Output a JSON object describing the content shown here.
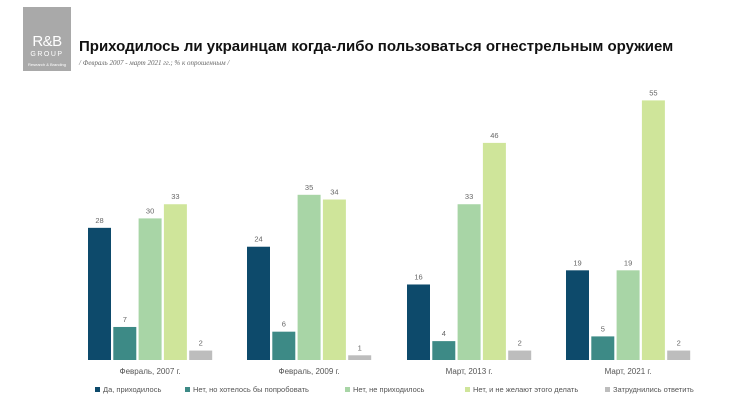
{
  "logo": {
    "line1": "R&B",
    "line2": "GROUP",
    "line3": "Research & Branding"
  },
  "header": {
    "title": "Приходилось ли украинцам когда-либо пользоваться огнестрельным оружием",
    "subtitle": "/ Февраль 2007 - март 2021 гг.; % к опрошенным /"
  },
  "chart_data": {
    "type": "bar",
    "title": "Приходилось ли украинцам когда-либо пользоваться огнестрельным оружием",
    "categories": [
      "Февраль, 2007 г.",
      "Февраль, 2009 г.",
      "Март, 2013 г.",
      "Март, 2021 г."
    ],
    "series": [
      {
        "name": "Да, приходилось",
        "color": "#0d4a6b",
        "values": [
          28,
          24,
          16,
          19
        ]
      },
      {
        "name": "Нет, но хотелось бы попробовать",
        "color": "#3d8a86",
        "values": [
          7,
          6,
          4,
          5
        ]
      },
      {
        "name": "Нет, не приходилось",
        "color": "#a8d5a6",
        "values": [
          30,
          35,
          33,
          19
        ]
      },
      {
        "name": "Нет, и не желают этого делать",
        "color": "#cfe59a",
        "values": [
          33,
          34,
          46,
          55
        ]
      },
      {
        "name": "Затруднились ответить",
        "color": "#bdbdbd",
        "values": [
          2,
          1,
          2,
          2
        ]
      }
    ],
    "ylim": [
      0,
      55
    ],
    "grid": false,
    "legend": "bottom"
  }
}
